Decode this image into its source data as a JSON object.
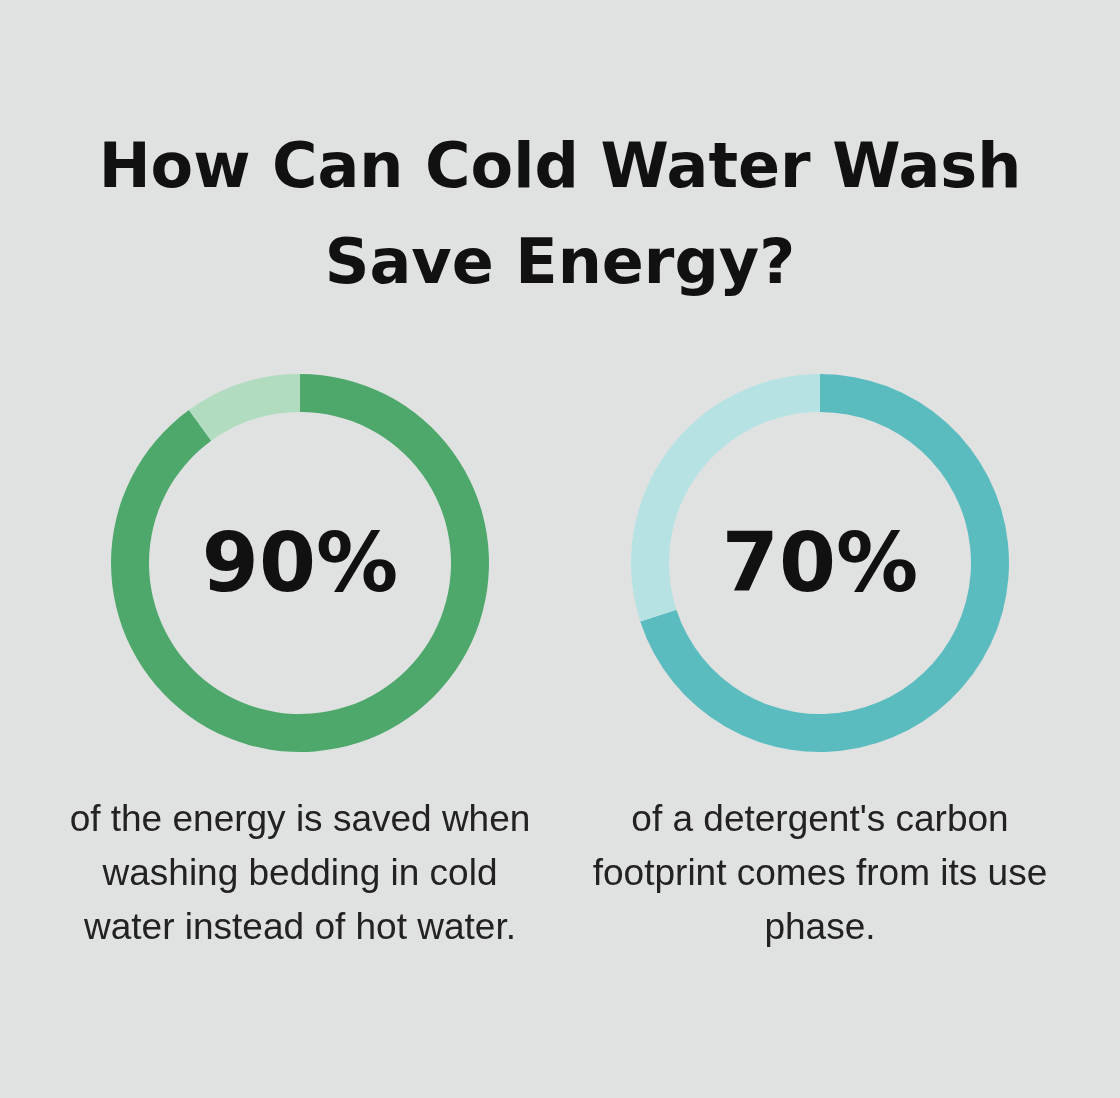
{
  "chart_data": [
    {
      "type": "donut",
      "title": "How Can Cold Water Wash Save Energy?",
      "categories": [
        null,
        null
      ],
      "values": [
        90,
        10
      ],
      "colors": [
        "#4ea86b",
        "#b2dcc0"
      ],
      "annotations": [
        "90%",
        "of the energy is saved when washing bedding in cold water instead of hot water."
      ]
    },
    {
      "type": "donut",
      "categories": [
        null,
        null
      ],
      "values": [
        70,
        30
      ],
      "colors": [
        "#5bbcc0",
        "#b7e2e4"
      ],
      "annotations": [
        "70%",
        "of a detergent's carbon footprint comes from its use phase."
      ]
    }
  ]
}
